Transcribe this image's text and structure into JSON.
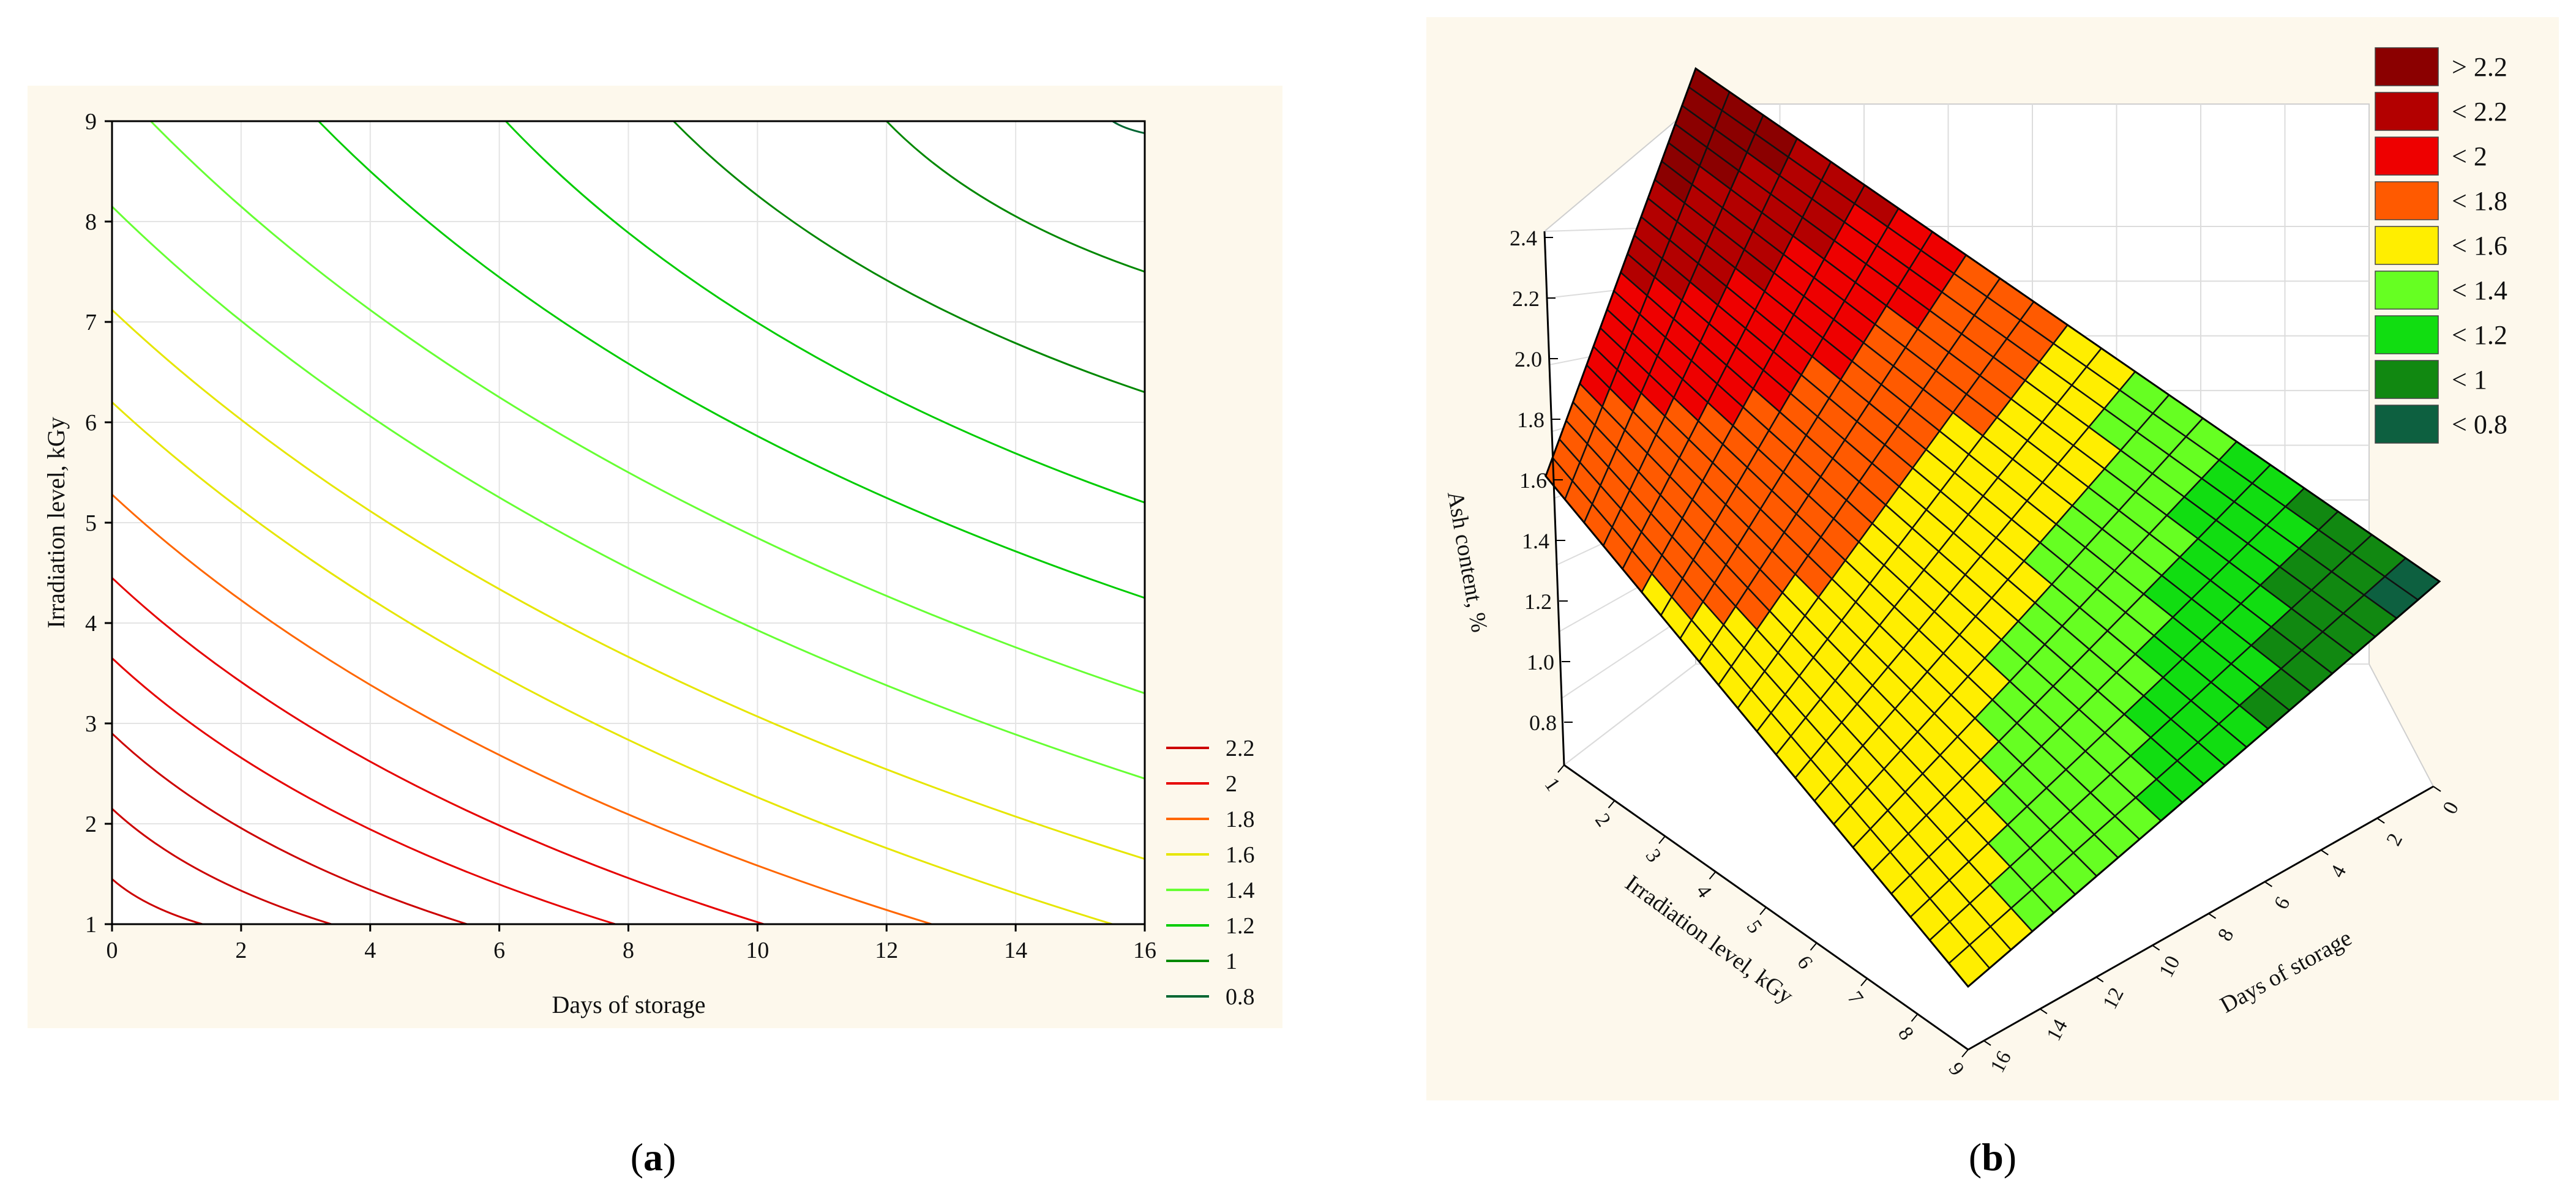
{
  "panels": {
    "a": {
      "label_open": "(",
      "letter": "a",
      "label_close": ")"
    },
    "b": {
      "label_open": "(",
      "letter": "b",
      "label_close": ")"
    }
  },
  "chart_data": [
    {
      "type": "contour",
      "panel": "a",
      "xlabel": "Days of storage",
      "ylabel": "Irradiation level, kGy",
      "xlim": [
        0,
        16
      ],
      "ylim": [
        1,
        9
      ],
      "xticks": [
        0,
        2,
        4,
        6,
        8,
        10,
        12,
        14,
        16
      ],
      "yticks": [
        1,
        2,
        3,
        4,
        5,
        6,
        7,
        8,
        9
      ],
      "grid": true,
      "legend_position": "right-bottom",
      "levels": [
        {
          "name": "2.2",
          "color": "#cc0000"
        },
        {
          "name": "2",
          "color": "#e60000"
        },
        {
          "name": "1.8",
          "color": "#ff6600"
        },
        {
          "name": "1.6",
          "color": "#e6e600"
        },
        {
          "name": "1.4",
          "color": "#66ff33"
        },
        {
          "name": "1.2",
          "color": "#00cc00"
        },
        {
          "name": "1",
          "color": "#008800"
        },
        {
          "name": "0.8",
          "color": "#006633"
        }
      ],
      "contour_lines": [
        {
          "color": "#cc0000",
          "points": [
            [
              0,
              1.45
            ],
            [
              1.4,
              1
            ]
          ]
        },
        {
          "color": "#cc0000",
          "points": [
            [
              0,
              2.15
            ],
            [
              3.4,
              1
            ]
          ]
        },
        {
          "color": "#cc0000",
          "points": [
            [
              0,
              2.9
            ],
            [
              5.5,
              1
            ]
          ]
        },
        {
          "color": "#e60000",
          "points": [
            [
              0,
              3.65
            ],
            [
              7.8,
              1
            ]
          ]
        },
        {
          "color": "#e60000",
          "points": [
            [
              0,
              4.45
            ],
            [
              10.1,
              1
            ]
          ]
        },
        {
          "color": "#ff6600",
          "points": [
            [
              0,
              5.28
            ],
            [
              12.7,
              1
            ]
          ]
        },
        {
          "color": "#e6e600",
          "points": [
            [
              0,
              6.2
            ],
            [
              15.5,
              1
            ]
          ]
        },
        {
          "color": "#e6e600",
          "points": [
            [
              0,
              7.12
            ],
            [
              16,
              1.65
            ]
          ]
        },
        {
          "color": "#66ff33",
          "points": [
            [
              0,
              8.15
            ],
            [
              16,
              2.45
            ]
          ]
        },
        {
          "color": "#66ff33",
          "points": [
            [
              0.6,
              9
            ],
            [
              16,
              3.3
            ]
          ]
        },
        {
          "color": "#00cc00",
          "points": [
            [
              3.2,
              9
            ],
            [
              16,
              4.25
            ]
          ]
        },
        {
          "color": "#00cc00",
          "points": [
            [
              6.1,
              9
            ],
            [
              16,
              5.2
            ]
          ]
        },
        {
          "color": "#008800",
          "points": [
            [
              8.7,
              9
            ],
            [
              16,
              6.3
            ]
          ]
        },
        {
          "color": "#008800",
          "points": [
            [
              12.0,
              9
            ],
            [
              16,
              7.5
            ]
          ]
        },
        {
          "color": "#006633",
          "points": [
            [
              15.5,
              9
            ],
            [
              16,
              8.88
            ]
          ]
        }
      ]
    },
    {
      "type": "surface3d",
      "panel": "b",
      "xlabel": "Days of storage",
      "ylabel": "Irradiation level, kGy",
      "zlabel": "Ash content, %",
      "xlim": [
        0,
        16
      ],
      "ylim": [
        1,
        9
      ],
      "zlim": [
        0.8,
        2.4
      ],
      "xticks": [
        0,
        2,
        4,
        6,
        8,
        10,
        12,
        14,
        16
      ],
      "yticks": [
        1,
        2,
        3,
        4,
        5,
        6,
        7,
        8,
        9
      ],
      "zticks": [
        "0.8",
        "1.0",
        "1.2",
        "1.4",
        "1.6",
        "1.8",
        "2.0",
        "2.2",
        "2.4"
      ],
      "corner_values": [
        {
          "days": 0,
          "kgy": 1,
          "ash": 1.62
        },
        {
          "days": 0,
          "kgy": 9,
          "ash": 1.5
        },
        {
          "days": 16,
          "kgy": 1,
          "ash": 2.45
        },
        {
          "days": 16,
          "kgy": 9,
          "ash": 0.7
        }
      ],
      "legend_position": "top-right",
      "legend": [
        {
          "name": "> 2.2",
          "color": "#8b0000"
        },
        {
          "name": "< 2.2",
          "color": "#b30000"
        },
        {
          "name": "< 2",
          "color": "#ee0000"
        },
        {
          "name": "< 1.8",
          "color": "#ff5a00"
        },
        {
          "name": "< 1.6",
          "color": "#ffee00"
        },
        {
          "name": "< 1.4",
          "color": "#66ff22"
        },
        {
          "name": "< 1.2",
          "color": "#11dd11"
        },
        {
          "name": "< 1",
          "color": "#118811"
        },
        {
          "name": "< 0.8",
          "color": "#0d6040"
        }
      ]
    }
  ]
}
